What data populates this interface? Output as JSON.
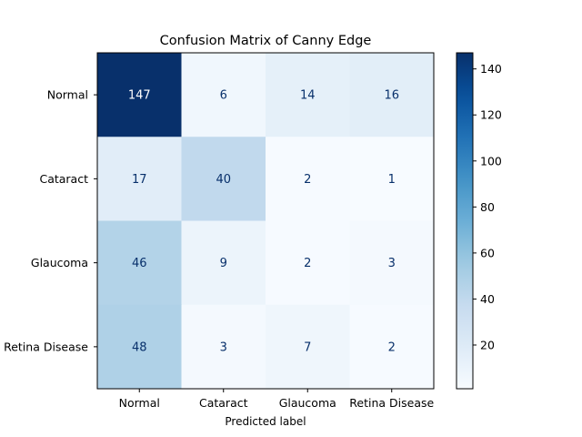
{
  "chart_data": {
    "type": "heatmap",
    "title": "Confusion Matrix of Canny Edge",
    "xlabel": "Predicted label",
    "ylabel": "",
    "x_categories": [
      "Normal",
      "Cataract",
      "Glaucoma",
      "Retina Disease"
    ],
    "y_categories": [
      "Normal",
      "Cataract",
      "Glaucoma",
      "Retina Disease"
    ],
    "values": [
      [
        147,
        6,
        14,
        16
      ],
      [
        17,
        40,
        2,
        1
      ],
      [
        46,
        9,
        2,
        3
      ],
      [
        48,
        3,
        7,
        2
      ]
    ],
    "colormap": "Blues",
    "colorbar": {
      "min": 1,
      "max": 147,
      "ticks": [
        20,
        40,
        60,
        80,
        100,
        120,
        140
      ]
    },
    "text_colors": {
      "light": "#ffffff",
      "dark": "#08306b"
    }
  }
}
